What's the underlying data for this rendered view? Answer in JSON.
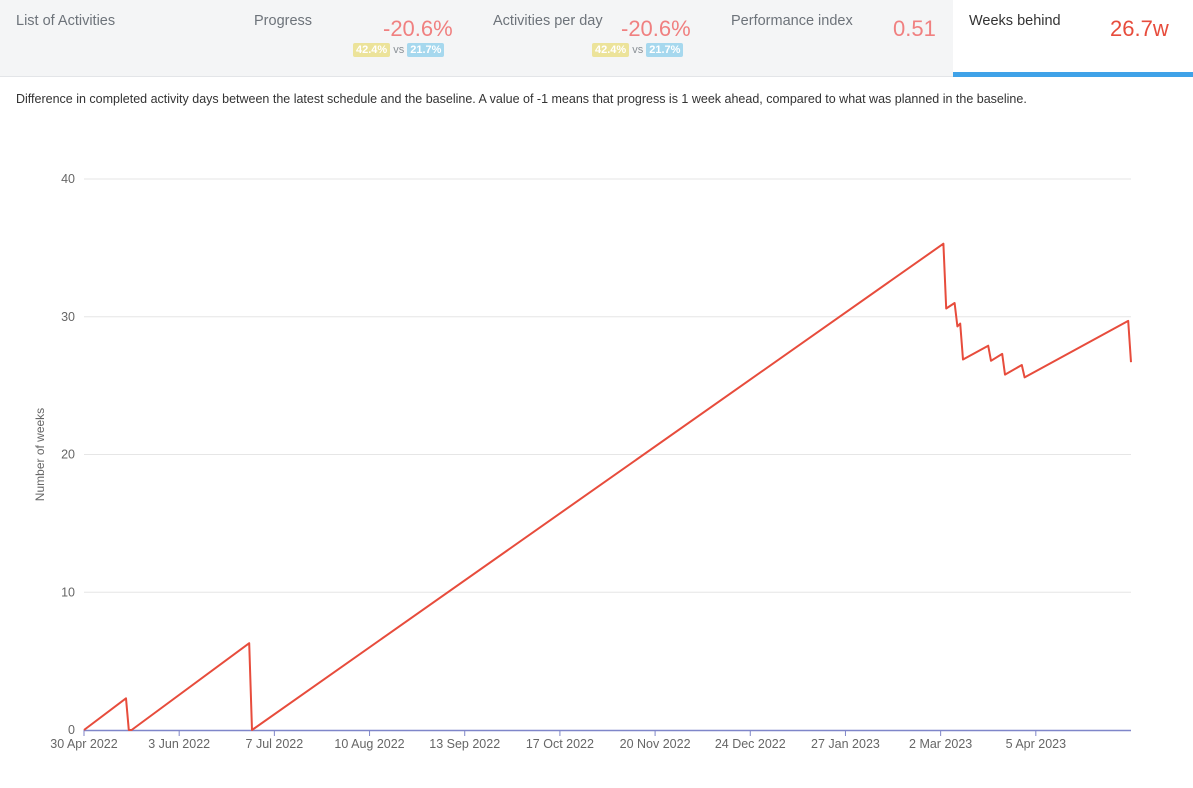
{
  "tabs": [
    {
      "label": "List of Activities"
    },
    {
      "label": "Progress",
      "value": "-20.6%",
      "badge_a": "42.4%",
      "vs": "vs",
      "badge_b": "21.7%"
    },
    {
      "label": "Activities per day",
      "value": "-20.6%",
      "badge_a": "42.4%",
      "vs": "vs",
      "badge_b": "21.7%"
    },
    {
      "label": "Performance index",
      "value": "0.51"
    },
    {
      "label": "Weeks behind",
      "value": "26.7w",
      "active": true
    }
  ],
  "description": "Difference in completed activity days between the latest schedule and the baseline. A value of -1 means that progress is 1 week ahead, compared to what was planned in the baseline.",
  "colors": {
    "line": "#e74c3c",
    "axis": "#7f86c9",
    "grid": "#e6e6e6",
    "active_tab": "#3fa2e8",
    "badge_a": "#ece39a",
    "badge_b": "#a6d8ee"
  },
  "chart_data": {
    "type": "line",
    "xlabel": "",
    "ylabel": "Number of weeks",
    "ylim": [
      0,
      40
    ],
    "yticks": [
      0,
      10,
      20,
      30,
      40
    ],
    "xlim": [
      "2022-04-30",
      "2023-05-09"
    ],
    "xticks": [
      "30 Apr 2022",
      "3 Jun 2022",
      "7 Jul 2022",
      "10 Aug 2022",
      "13 Sep 2022",
      "17 Oct 2022",
      "20 Nov 2022",
      "24 Dec 2022",
      "27 Jan 2023",
      "2 Mar 2023",
      "5 Apr 2023"
    ],
    "grid": true,
    "legend": "none",
    "series": [
      {
        "points": [
          [
            "2022-04-30",
            0
          ],
          [
            "2022-05-15",
            2.3
          ],
          [
            "2022-05-16",
            0
          ],
          [
            "2022-05-17",
            0
          ],
          [
            "2022-06-28",
            6.3
          ],
          [
            "2022-06-29",
            0
          ],
          [
            "2023-03-03",
            35.3
          ],
          [
            "2023-03-04",
            30.6
          ],
          [
            "2023-03-07",
            31.0
          ],
          [
            "2023-03-08",
            29.3
          ],
          [
            "2023-03-09",
            29.5
          ],
          [
            "2023-03-10",
            26.9
          ],
          [
            "2023-03-19",
            27.9
          ],
          [
            "2023-03-20",
            26.8
          ],
          [
            "2023-03-24",
            27.3
          ],
          [
            "2023-03-25",
            25.8
          ],
          [
            "2023-03-31",
            26.5
          ],
          [
            "2023-04-01",
            25.6
          ],
          [
            "2023-05-08",
            29.7
          ],
          [
            "2023-05-09",
            26.7
          ]
        ]
      }
    ]
  }
}
